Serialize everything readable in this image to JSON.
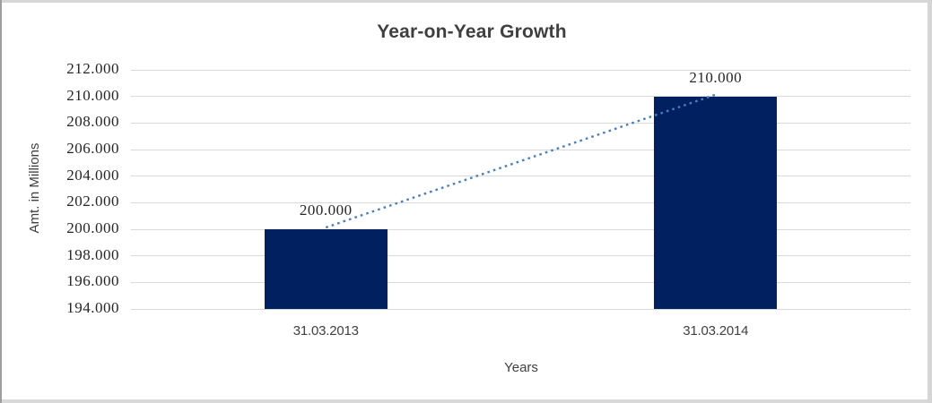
{
  "window": {
    "background": "#ffffff",
    "border_color_light": "#d6d6d6",
    "border_color_dark": "#9e9e9e"
  },
  "chart_data": {
    "type": "bar",
    "title": "Year-on-Year Growth",
    "xlabel": "Years",
    "ylabel": "Amt. in Millions",
    "categories": [
      "31.03.2013",
      "31.03.2014"
    ],
    "values": [
      200000,
      210000
    ],
    "data_labels": [
      "200.000",
      "210.000"
    ],
    "y_ticks": [
      "212.000",
      "210.000",
      "208.000",
      "206.000",
      "204.000",
      "202.000",
      "200.000",
      "198.000",
      "196.000",
      "194.000"
    ],
    "ylim": [
      194000,
      212000
    ],
    "y_tick_step": 2000,
    "grid": "horizontal-only",
    "legend_position": "none",
    "trendline": {
      "style": "dotted",
      "from_value": 200000,
      "to_value": 210000
    },
    "colors": {
      "bar_fill": "#002060",
      "trendline": "#4a7ebd",
      "gridline": "#d9d9d9",
      "title_text": "#3f3f3f",
      "axis_title_text": "#404040",
      "tick_text": "#262626"
    }
  }
}
